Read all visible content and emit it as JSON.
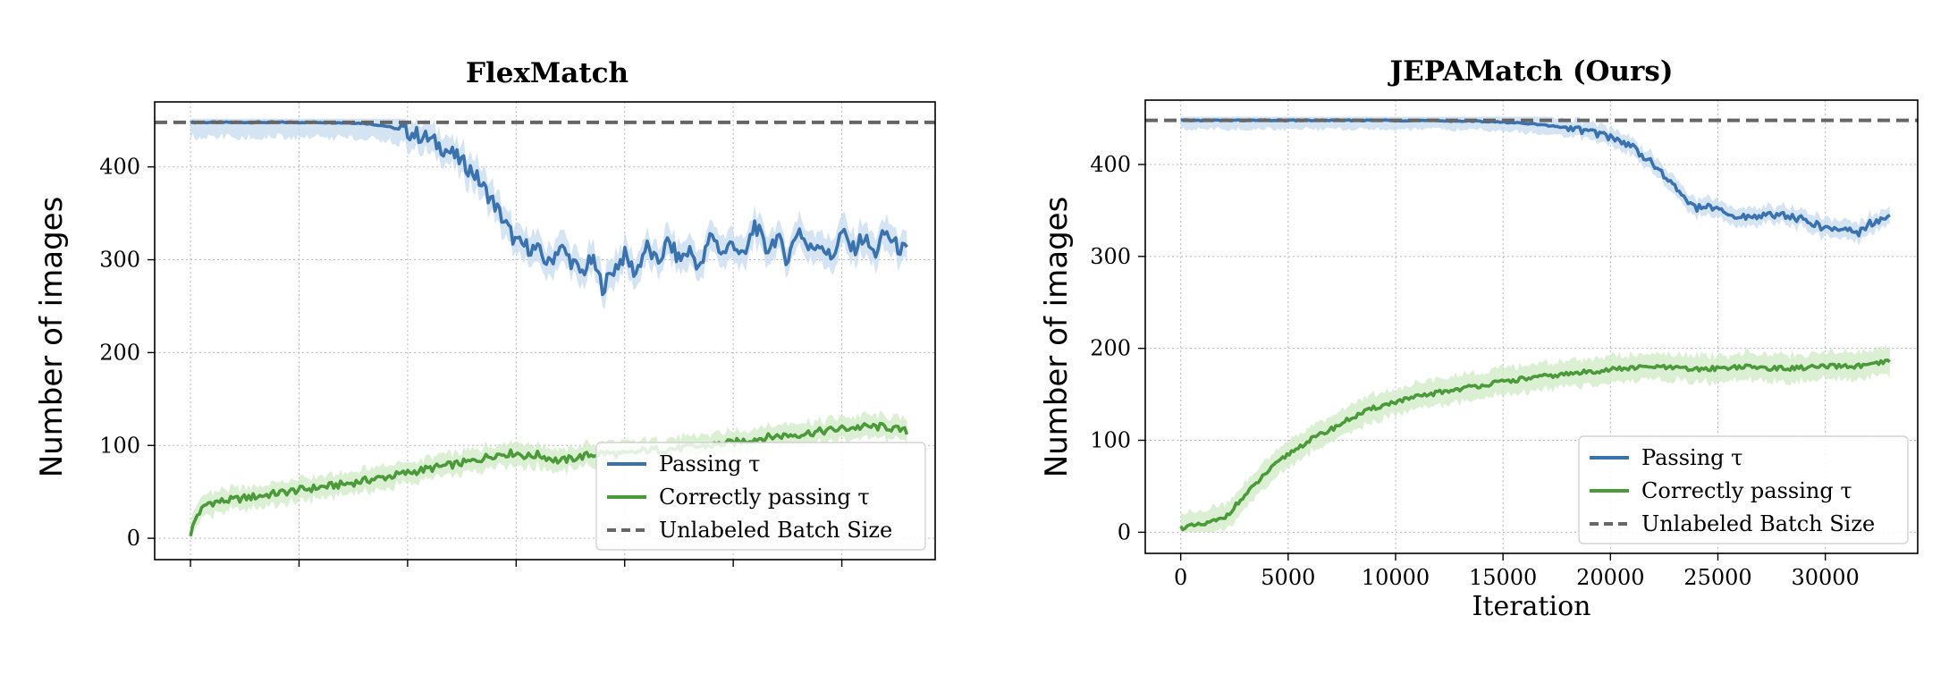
{
  "legend_labels": {
    "passing": "Passing τ",
    "correct": "Correctly passing τ",
    "batch": "Unlabeled Batch Size"
  },
  "colors": {
    "passing": "#3a72b0",
    "passing_band": "#c6dbef",
    "correct": "#4a9a3a",
    "correct_band": "#cfe9c4",
    "batch": "#666666",
    "grid": "#b8b8b8"
  },
  "chart_data": [
    {
      "type": "line",
      "title": "FlexMatch",
      "xlabel": "",
      "ylabel": "Number of images",
      "xlim": [
        -1650,
        34300
      ],
      "ylim": [
        -23,
        470
      ],
      "x_ticks": [
        0,
        5000,
        10000,
        15000,
        20000,
        25000,
        30000
      ],
      "x_tick_labels_visible": false,
      "y_ticks": [
        0,
        100,
        200,
        300,
        400
      ],
      "grid": true,
      "legend_position": "lower-right",
      "hline": {
        "name": "Unlabeled Batch Size",
        "y": 448
      },
      "series": [
        {
          "name": "Passing τ",
          "x": [
            0,
            2000,
            4000,
            6000,
            8000,
            9000,
            10000,
            11000,
            12000,
            13000,
            14000,
            15000,
            16000,
            16500,
            17000,
            17500,
            18000,
            18500,
            19000,
            19500,
            20000,
            20500,
            21000,
            21500,
            22000,
            22500,
            23000,
            23500,
            24000,
            24500,
            25000,
            25500,
            26000,
            26500,
            27000,
            27500,
            28000,
            28500,
            29000,
            29500,
            30000,
            30500,
            31000,
            31500,
            32000,
            32500,
            33000
          ],
          "y": [
            448,
            448,
            448,
            448,
            447,
            444,
            438,
            430,
            415,
            395,
            360,
            318,
            310,
            295,
            315,
            300,
            285,
            300,
            270,
            290,
            305,
            285,
            315,
            295,
            320,
            300,
            310,
            290,
            330,
            305,
            320,
            300,
            340,
            310,
            325,
            300,
            335,
            310,
            320,
            300,
            330,
            310,
            325,
            305,
            330,
            315,
            308
          ],
          "band": 20
        },
        {
          "name": "Correctly passing τ",
          "x": [
            0,
            300,
            800,
            1500,
            3000,
            5000,
            7000,
            9000,
            11000,
            13000,
            14000,
            15000,
            15500,
            16000,
            17000,
            18000,
            19000,
            20000,
            21000,
            22000,
            23000,
            24000,
            25000,
            26000,
            27000,
            28000,
            29000,
            30000,
            31000,
            32000,
            33000
          ],
          "y": [
            5,
            25,
            38,
            40,
            45,
            52,
            58,
            66,
            75,
            83,
            90,
            92,
            88,
            90,
            83,
            88,
            92,
            90,
            95,
            96,
            98,
            100,
            103,
            107,
            110,
            112,
            115,
            118,
            120,
            120,
            115
          ],
          "band": 15
        }
      ]
    },
    {
      "type": "line",
      "title": "JEPAMatch (Ours)",
      "xlabel": "Iteration",
      "ylabel": "Number of images",
      "xlim": [
        -1650,
        34300
      ],
      "ylim": [
        -23,
        470
      ],
      "x_ticks": [
        0,
        5000,
        10000,
        15000,
        20000,
        25000,
        30000
      ],
      "x_tick_labels": [
        "0",
        "5000",
        "10000",
        "15000",
        "20000",
        "25000",
        "30000"
      ],
      "y_ticks": [
        0,
        100,
        200,
        300,
        400
      ],
      "y_tick_labels": [
        "0",
        "100",
        "200",
        "300",
        "400"
      ],
      "grid": true,
      "legend_position": "lower-right",
      "hline": {
        "name": "Unlabeled Batch Size",
        "y": 448
      },
      "series": [
        {
          "name": "Passing τ",
          "x": [
            0,
            5000,
            10000,
            14000,
            16000,
            18000,
            19000,
            20000,
            21000,
            22000,
            23000,
            24000,
            24500,
            25000,
            25500,
            26000,
            27000,
            28000,
            29000,
            30000,
            31000,
            31500,
            32000,
            32500,
            33000
          ],
          "y": [
            448,
            448,
            448,
            447,
            445,
            440,
            436,
            430,
            420,
            400,
            375,
            352,
            355,
            350,
            345,
            342,
            345,
            345,
            340,
            330,
            330,
            325,
            335,
            340,
            342
          ],
          "band": 12
        },
        {
          "name": "Correctly passing τ",
          "x": [
            0,
            1000,
            2000,
            3000,
            4000,
            5000,
            6000,
            7000,
            8000,
            9000,
            10000,
            12000,
            14000,
            16000,
            18000,
            20000,
            22000,
            24000,
            26000,
            28000,
            30000,
            32000,
            33000
          ],
          "y": [
            5,
            8,
            15,
            40,
            65,
            85,
            100,
            112,
            125,
            135,
            142,
            152,
            160,
            167,
            172,
            177,
            180,
            177,
            180,
            178,
            180,
            181,
            186
          ],
          "band": 18
        }
      ]
    }
  ]
}
